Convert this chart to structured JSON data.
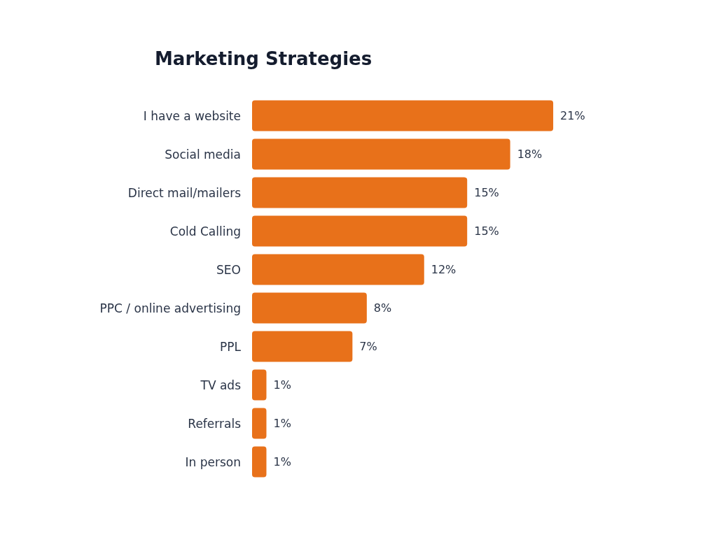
{
  "chart_data": {
    "type": "bar",
    "orientation": "horizontal",
    "title": "Marketing Strategies",
    "categories": [
      "I have a website",
      "Social media",
      "Direct mail/mailers",
      "Cold Calling",
      "SEO",
      "PPC / online advertising",
      "PPL",
      "TV ads",
      "Referrals",
      "In person"
    ],
    "values": [
      21,
      18,
      15,
      15,
      12,
      8,
      7,
      1,
      1,
      1
    ],
    "value_labels": [
      "21%",
      "18%",
      "15%",
      "15%",
      "12%",
      "8%",
      "7%",
      "1%",
      "1%",
      "1%"
    ],
    "color": "#e8711a"
  }
}
